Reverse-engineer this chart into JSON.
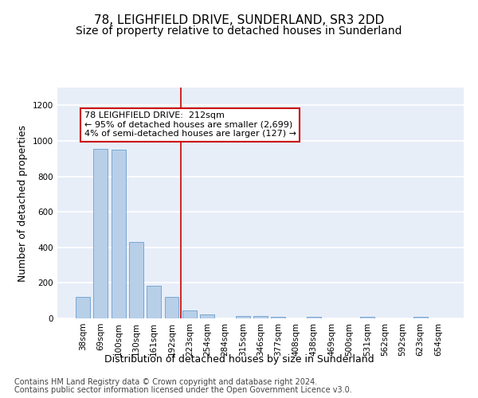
{
  "title": "78, LEIGHFIELD DRIVE, SUNDERLAND, SR3 2DD",
  "subtitle": "Size of property relative to detached houses in Sunderland",
  "xlabel": "Distribution of detached houses by size in Sunderland",
  "ylabel": "Number of detached properties",
  "categories": [
    "38sqm",
    "69sqm",
    "100sqm",
    "130sqm",
    "161sqm",
    "192sqm",
    "223sqm",
    "254sqm",
    "284sqm",
    "315sqm",
    "346sqm",
    "377sqm",
    "408sqm",
    "438sqm",
    "469sqm",
    "500sqm",
    "531sqm",
    "562sqm",
    "592sqm",
    "623sqm",
    "654sqm"
  ],
  "values": [
    120,
    955,
    950,
    430,
    183,
    120,
    43,
    22,
    0,
    15,
    15,
    10,
    0,
    10,
    0,
    0,
    10,
    0,
    0,
    10,
    0
  ],
  "bar_color": "#b8cfe8",
  "bar_edge_color": "#6a9fd0",
  "background_color": "#e8eef8",
  "grid_color": "#ffffff",
  "annotation_box_text": "78 LEIGHFIELD DRIVE:  212sqm\n← 95% of detached houses are smaller (2,699)\n4% of semi-detached houses are larger (127) →",
  "annotation_box_color": "#ffffff",
  "annotation_box_edge_color": "#cc0000",
  "vline_x_index": 6,
  "vline_color": "#cc0000",
  "ylim": [
    0,
    1300
  ],
  "yticks": [
    0,
    200,
    400,
    600,
    800,
    1000,
    1200
  ],
  "footer_line1": "Contains HM Land Registry data © Crown copyright and database right 2024.",
  "footer_line2": "Contains public sector information licensed under the Open Government Licence v3.0.",
  "title_fontsize": 11,
  "subtitle_fontsize": 10,
  "axis_label_fontsize": 9,
  "tick_fontsize": 7.5,
  "annotation_fontsize": 8,
  "footer_fontsize": 7
}
